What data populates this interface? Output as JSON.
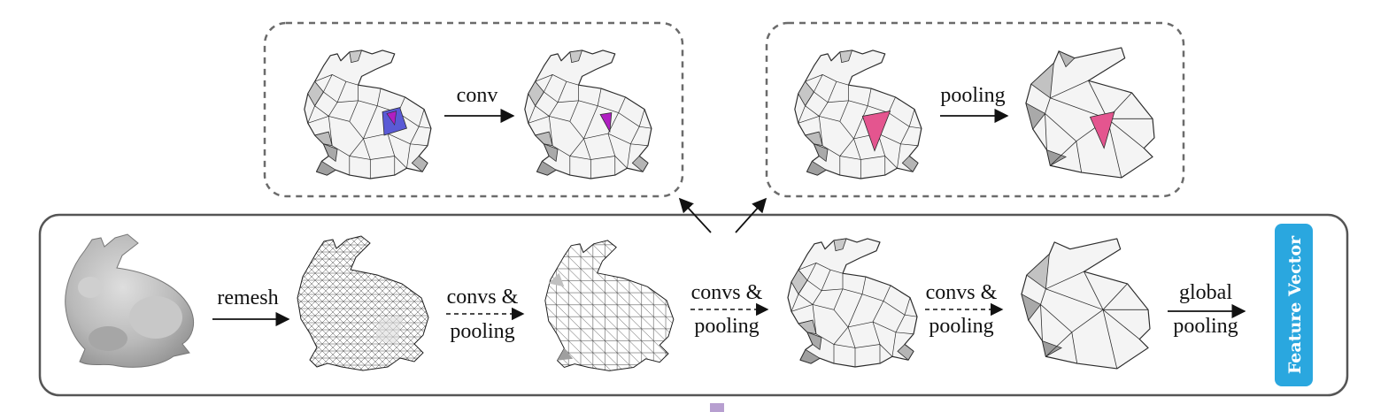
{
  "labels": {
    "conv": "conv",
    "pooling_top": "pooling",
    "remesh": "remesh",
    "stage1_line1": "convs &",
    "stage1_line2": "pooling",
    "stage2_line1": "convs &",
    "stage2_line2": "pooling",
    "stage3_line1": "convs &",
    "stage3_line2": "pooling",
    "global_line1": "global",
    "global_line2": "pooling",
    "feature_vector": "Feature Vector"
  },
  "colors": {
    "frame": "#555555",
    "dashed_frame": "#6b6b6b",
    "mesh_fill": "#f2f2f2",
    "mesh_shade": "#bdbdbd",
    "mesh_edge": "#2b2b2b",
    "highlight_blue": "#5a5ad6",
    "highlight_magenta": "#b01fc2",
    "highlight_pink": "#e4558f",
    "feature_vector_bg": "#2aa7df",
    "small_square": "#b79fd0"
  }
}
